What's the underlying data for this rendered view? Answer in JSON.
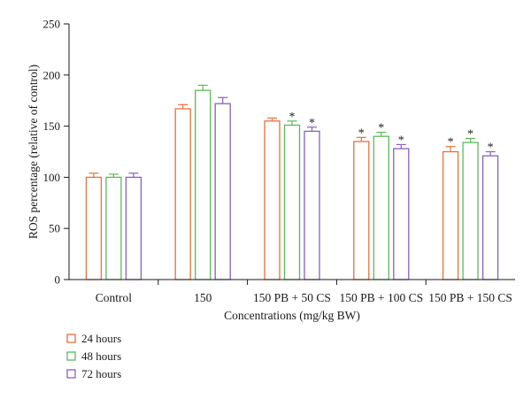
{
  "chart_data": {
    "type": "bar",
    "title": "",
    "xlabel": "Concentrations (mg/kg BW)",
    "ylabel": "ROS percentage (relative of control)",
    "ylim": [
      0,
      250
    ],
    "yticks": [
      0,
      50,
      100,
      150,
      200,
      250
    ],
    "categories": [
      "Control",
      "150",
      "150 PB + 50 CS",
      "150 PB + 100 CS",
      "150 PB + 150 CS"
    ],
    "series": [
      {
        "name": "24 hours",
        "color": "#e8703a",
        "values": [
          100,
          167,
          155,
          135,
          125
        ],
        "errors": [
          4,
          4,
          3,
          4,
          5
        ],
        "significant": [
          false,
          false,
          false,
          true,
          true
        ]
      },
      {
        "name": "48 hours",
        "color": "#5cb85c",
        "values": [
          100,
          185,
          151,
          140,
          134
        ],
        "errors": [
          3,
          5,
          4,
          4,
          4
        ],
        "significant": [
          false,
          false,
          true,
          true,
          true
        ]
      },
      {
        "name": "72 hours",
        "color": "#8a5fc0",
        "values": [
          100,
          172,
          145,
          128,
          121
        ],
        "errors": [
          4,
          6,
          4,
          4,
          4
        ],
        "significant": [
          false,
          false,
          true,
          true,
          true
        ]
      }
    ],
    "significance_marker": "*",
    "legend_position": "bottom-left",
    "grid": false
  }
}
